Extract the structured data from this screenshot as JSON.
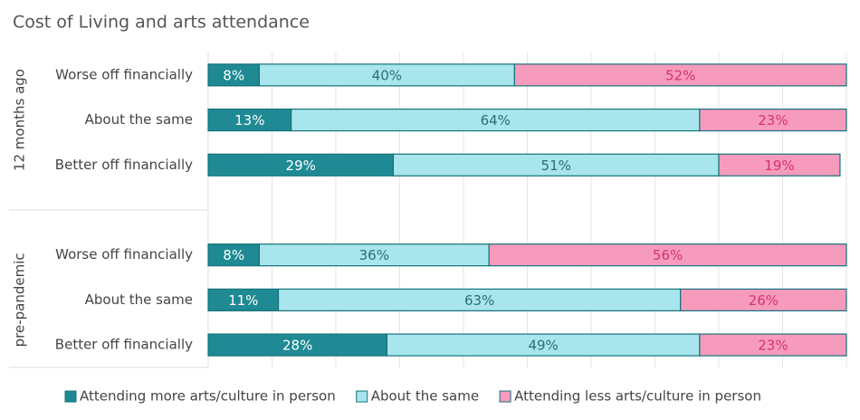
{
  "chart_data": {
    "type": "stacked-bar-horizontal",
    "title": "Cost of Living and arts attendance",
    "groups": [
      "12 months ago",
      "pre-pandemic"
    ],
    "categories": [
      "Worse off financially",
      "About the same",
      "Better off financially",
      "Worse off financially",
      "About the same",
      "Better off financially"
    ],
    "series": [
      {
        "name": "Attending more arts/culture in person",
        "color": "#1f8a93",
        "label_color": "#ffffff",
        "border": "#16727a",
        "values": [
          8,
          13,
          29,
          8,
          11,
          28
        ],
        "value_labels": [
          "8%",
          "13%",
          "29%",
          "8%",
          "11%",
          "28%"
        ]
      },
      {
        "name": "About the same",
        "color": "#a8e5ec",
        "label_color": "#2b6f78",
        "border": "#16727a",
        "values": [
          40,
          64,
          51,
          36,
          63,
          49
        ],
        "value_labels": [
          "40%",
          "64%",
          "51%",
          "36%",
          "63%",
          "49%"
        ]
      },
      {
        "name": "Attending less arts/culture in person",
        "color": "#f79bbd",
        "label_color": "#d6336c",
        "border": "#16727a",
        "values": [
          52,
          23,
          19,
          56,
          26,
          23
        ],
        "value_labels": [
          "52%",
          "23%",
          "19%",
          "56%",
          "26%",
          "23%"
        ]
      }
    ],
    "xlim": [
      0,
      100
    ],
    "xticks": [
      0,
      10,
      20,
      30,
      40,
      50,
      60,
      70,
      80,
      90,
      100
    ],
    "grid": true,
    "legend": "bottom"
  }
}
